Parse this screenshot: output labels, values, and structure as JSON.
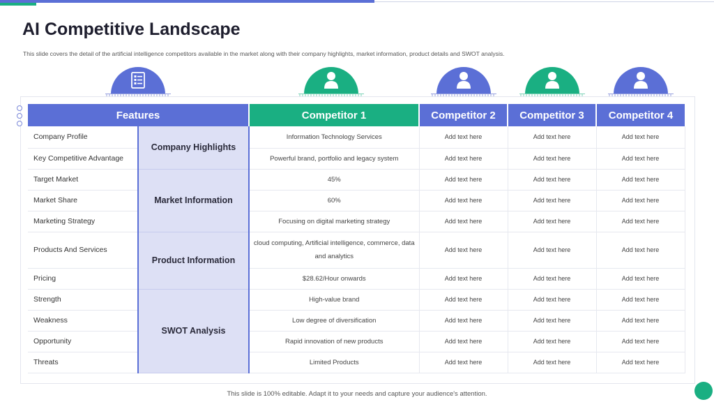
{
  "slide": {
    "title": "AI Competitive Landscape",
    "subtitle": "This slide covers the detail of the artificial intelligence competitors available in the market along with their company highlights, market information, product details and SWOT analysis.",
    "footer": "This slide is 100% editable. Adapt it to your needs and capture your audience's attention."
  },
  "colors": {
    "primary": "#5b6fd6",
    "accent": "#1aaf82",
    "category_bg": "#dde0f5"
  },
  "badges": [
    {
      "icon": "checklist-icon",
      "color": "#5b6fd6"
    },
    {
      "icon": "user-icon",
      "color": "#1aaf82"
    },
    {
      "icon": "user-icon",
      "color": "#5b6fd6"
    },
    {
      "icon": "user-icon",
      "color": "#1aaf82"
    },
    {
      "icon": "user-icon",
      "color": "#5b6fd6"
    }
  ],
  "table": {
    "headers": {
      "features": "Features",
      "competitor1": "Competitor 1",
      "competitor2": "Competitor 2",
      "competitor3": "Competitor 3",
      "competitor4": "Competitor 4"
    },
    "categories": {
      "company": "Company Highlights",
      "market": "Market Information",
      "product": "Product Information",
      "swot": "SWOT Analysis"
    },
    "rows": [
      {
        "feature": "Company Profile",
        "c1": "Information Technology Services",
        "c2": "Add text here",
        "c3": "Add text here",
        "c4": "Add text here"
      },
      {
        "feature": "Key Competitive Advantage",
        "c1": "Powerful brand, portfolio and legacy system",
        "c2": "Add text here",
        "c3": "Add text here",
        "c4": "Add text here"
      },
      {
        "feature": "Target Market",
        "c1": "45%",
        "c2": "Add text here",
        "c3": "Add text here",
        "c4": "Add text here"
      },
      {
        "feature": "Market Share",
        "c1": "60%",
        "c2": "Add text here",
        "c3": "Add text here",
        "c4": "Add text here"
      },
      {
        "feature": "Marketing Strategy",
        "c1": "Focusing on digital marketing strategy",
        "c2": "Add text here",
        "c3": "Add text here",
        "c4": "Add text here"
      },
      {
        "feature": "Products And Services",
        "c1": "cloud computing, Artificial intelligence, commerce, data and analytics",
        "c2": "Add text here",
        "c3": "Add text here",
        "c4": "Add text here"
      },
      {
        "feature": "Pricing",
        "c1": "$28.62/Hour onwards",
        "c2": "Add text here",
        "c3": "Add text here",
        "c4": "Add text here"
      },
      {
        "feature": "Strength",
        "c1": "High-value brand",
        "c2": "Add text here",
        "c3": "Add text here",
        "c4": "Add text here"
      },
      {
        "feature": "Weakness",
        "c1": "Low degree of diversification",
        "c2": "Add text here",
        "c3": "Add text here",
        "c4": "Add text here"
      },
      {
        "feature": "Opportunity",
        "c1": "Rapid innovation of new products",
        "c2": "Add text here",
        "c3": "Add text here",
        "c4": "Add text here"
      },
      {
        "feature": "Threats",
        "c1": "Limited Products",
        "c2": "Add text here",
        "c3": "Add text here",
        "c4": "Add text here"
      }
    ]
  }
}
